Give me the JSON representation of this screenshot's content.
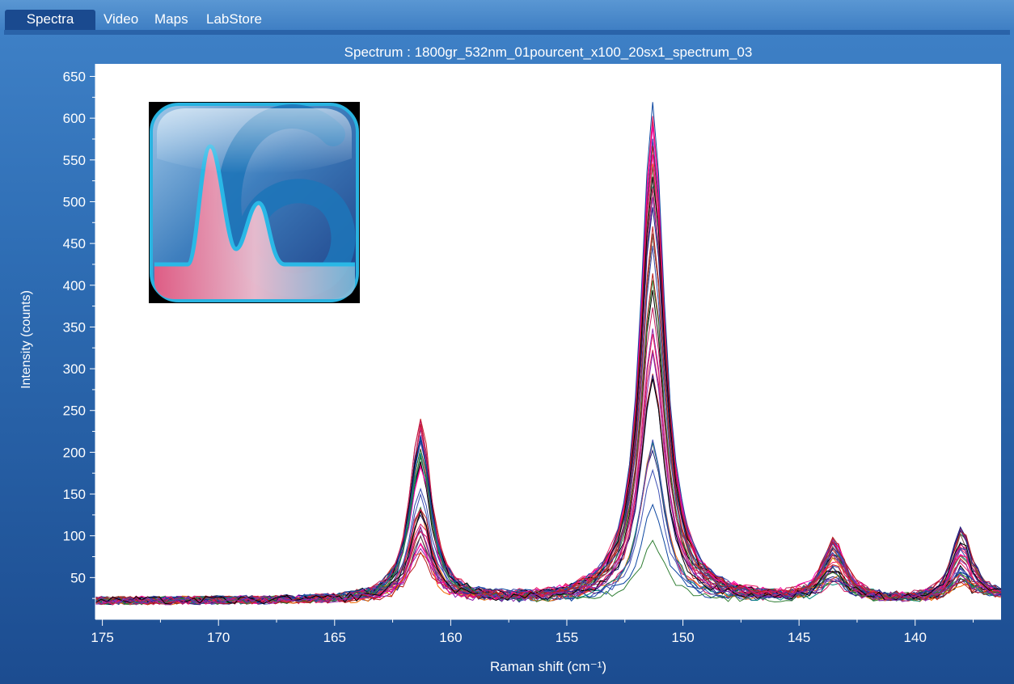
{
  "tabs": [
    {
      "label": "Spectra",
      "active": true
    },
    {
      "label": "Video",
      "active": false
    },
    {
      "label": "Maps",
      "active": false
    },
    {
      "label": "LabStore",
      "active": false
    }
  ],
  "colors": {
    "accent": "#1a4a8f",
    "plot_background": "#ffffff",
    "panel": "#2e6db4"
  },
  "logo": {
    "icon": "labspec-6-logo-icon"
  },
  "chart_data": {
    "type": "line",
    "title": "Spectrum : 1800gr_532nm_01pourcent_x100_20sx1_spectrum_03",
    "xlabel": "Raman shift (cm⁻¹)",
    "ylabel": "Intensity (counts)",
    "xlim": [
      175.3,
      136.3
    ],
    "ylim": [
      0,
      665
    ],
    "x_reversed": true,
    "xticks": [
      175,
      170,
      165,
      160,
      155,
      150,
      145,
      140
    ],
    "yticks": [
      50,
      100,
      150,
      200,
      250,
      300,
      350,
      400,
      450,
      500,
      550,
      600,
      650
    ],
    "grid": false,
    "legend": "none",
    "baseline": 22,
    "series_count": 40,
    "series_colors": [
      "#c2185b",
      "#1a237e",
      "#e91e63",
      "#2e7d32",
      "#3949ab",
      "#b71c1c",
      "#000000",
      "#8e24aa",
      "#ef6c00",
      "#00897b",
      "#d81b60",
      "#3f51b5",
      "#795548",
      "#ff00aa",
      "#0d47a1",
      "#c62828"
    ],
    "peaks": [
      {
        "position": 161.3,
        "max": 248,
        "min": 72,
        "width": 0.55
      },
      {
        "position": 151.3,
        "max": 640,
        "min": 75,
        "width": 0.62
      },
      {
        "position": 143.5,
        "max": 92,
        "min": 40,
        "width": 0.6
      },
      {
        "position": 138.0,
        "max": 110,
        "min": 40,
        "width": 0.5
      }
    ]
  }
}
